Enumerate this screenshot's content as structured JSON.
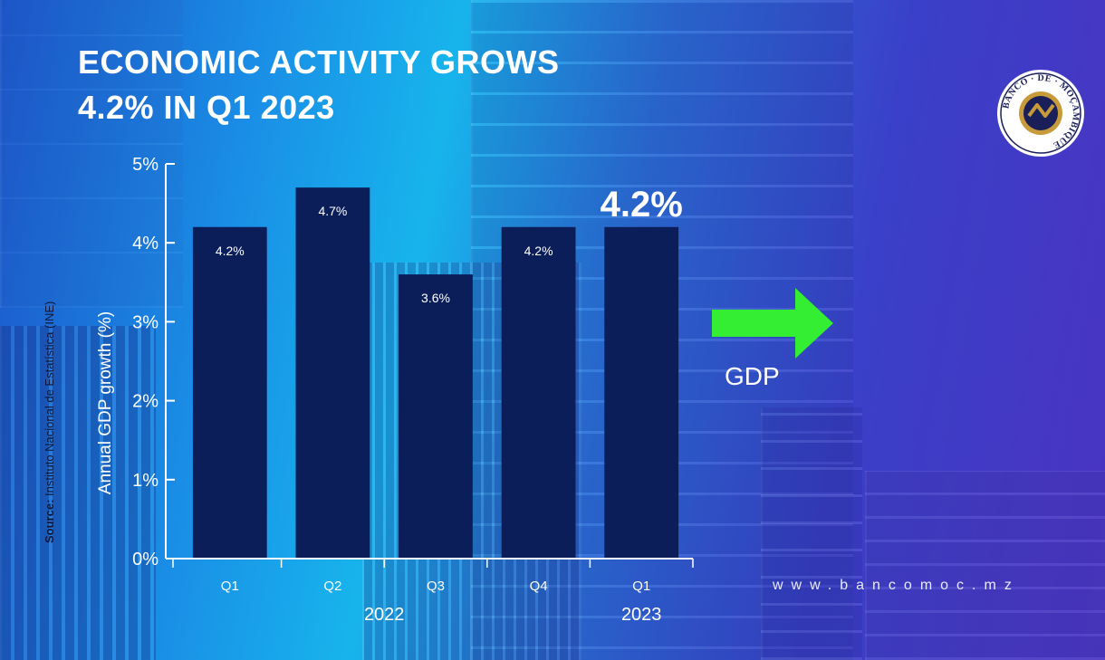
{
  "title_lines": [
    "ECONOMIC ACTIVITY GROWS",
    "4.2% IN Q1 2023"
  ],
  "source": {
    "prefix": "Source:",
    "text": " Instituto Nacional de Estatística (INE)"
  },
  "gdp_label": "GDP",
  "website": "www.bancomoc.mz",
  "logo": {
    "text": "BANCO · DE · MOÇAMBIQUE"
  },
  "colors": {
    "bar": "#0b1e5a",
    "text": "#ffffff",
    "arrow": "#33ee33",
    "source_text": "#10163a"
  },
  "chart_data": {
    "type": "bar",
    "categories": [
      "Q1",
      "Q2",
      "Q3",
      "Q4",
      "Q1"
    ],
    "values": [
      4.2,
      4.7,
      3.6,
      4.2,
      4.2
    ],
    "data_labels": [
      "4.2%",
      "4.7%",
      "3.6%",
      "4.2%",
      "4.2%"
    ],
    "highlight_index": 4,
    "groups": [
      {
        "label": "2022",
        "from": 0,
        "to": 3
      },
      {
        "label": "2023",
        "from": 4,
        "to": 4
      }
    ],
    "ylabel": "Annual GDP growth (%)",
    "ylim": [
      0,
      5
    ],
    "yticks": [
      0,
      1,
      2,
      3,
      4,
      5
    ],
    "ytick_labels": [
      "0%",
      "1%",
      "2%",
      "3%",
      "4%",
      "5%"
    ],
    "grid": false
  }
}
